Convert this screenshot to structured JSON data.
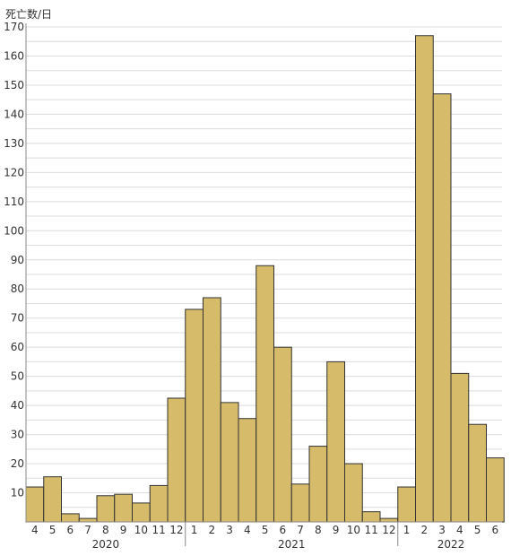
{
  "chart_data": {
    "type": "bar",
    "ylabel": "死亡数/日",
    "ylim": [
      0,
      170
    ],
    "y_ticks": [
      10,
      20,
      30,
      40,
      50,
      60,
      70,
      80,
      90,
      100,
      110,
      120,
      130,
      140,
      150,
      160,
      170
    ],
    "grid": true,
    "categories": [
      "4",
      "5",
      "6",
      "7",
      "8",
      "9",
      "10",
      "11",
      "12",
      "1",
      "2",
      "3",
      "4",
      "5",
      "6",
      "7",
      "8",
      "9",
      "10",
      "11",
      "12",
      "1",
      "2",
      "3",
      "4",
      "5",
      "6"
    ],
    "values": [
      12,
      15.5,
      2.8,
      1.2,
      9,
      9.5,
      6.5,
      12.5,
      42.5,
      73,
      77,
      41,
      35.5,
      88,
      60,
      13,
      26,
      55,
      20,
      3.5,
      1.2,
      12,
      167,
      147,
      51,
      33.5,
      22
    ],
    "year_groups": [
      {
        "label": "2020",
        "start": 0,
        "end": 8
      },
      {
        "label": "2021",
        "start": 9,
        "end": 20
      },
      {
        "label": "2022",
        "start": 21,
        "end": 26
      }
    ],
    "colors": {
      "bar_fill": "#d6bb6b",
      "bar_stroke": "#333333",
      "grid": "#dcdcdc",
      "axis": "#888888"
    }
  }
}
